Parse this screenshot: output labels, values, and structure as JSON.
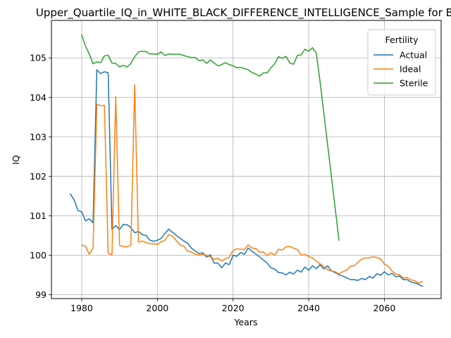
{
  "chart_data": {
    "type": "line",
    "title": "Upper_Quartile_IQ_in_WHITE_BLACK_DIFFERENCE_INTELLIGENCE_Sample for Bl",
    "xlabel": "Years",
    "ylabel": "IQ",
    "xlim": [
      1972,
      2075
    ],
    "ylim": [
      98.9,
      105.95
    ],
    "x_ticks": [
      1980,
      2000,
      2020,
      2040,
      2060
    ],
    "y_ticks": [
      99,
      100,
      101,
      102,
      103,
      104,
      105
    ],
    "grid": true,
    "legend": {
      "title": "Fertility",
      "placement": "top-right"
    },
    "series": [
      {
        "name": "Actual",
        "color": "#1f77b4",
        "points": [
          [
            1977,
            101.55
          ],
          [
            1978,
            101.4
          ],
          [
            1979,
            101.13
          ],
          [
            1980,
            101.1
          ],
          [
            1981,
            100.87
          ],
          [
            1982,
            100.92
          ],
          [
            1983,
            100.82
          ],
          [
            1984,
            104.7
          ],
          [
            1985,
            104.6
          ],
          [
            1986,
            104.65
          ],
          [
            1987,
            104.62
          ],
          [
            1988,
            100.65
          ],
          [
            1989,
            100.75
          ],
          [
            1990,
            100.65
          ],
          [
            1991,
            100.78
          ],
          [
            1992,
            100.77
          ],
          [
            1993,
            100.7
          ],
          [
            1994,
            100.57
          ],
          [
            1995,
            100.6
          ],
          [
            1996,
            100.52
          ],
          [
            1997,
            100.5
          ],
          [
            1998,
            100.38
          ],
          [
            1999,
            100.35
          ],
          [
            2000,
            100.38
          ],
          [
            2001,
            100.42
          ],
          [
            2002,
            100.55
          ],
          [
            2003,
            100.66
          ],
          [
            2004,
            100.58
          ],
          [
            2005,
            100.5
          ],
          [
            2006,
            100.43
          ],
          [
            2007,
            100.36
          ],
          [
            2008,
            100.3
          ],
          [
            2009,
            100.18
          ],
          [
            2010,
            100.1
          ],
          [
            2011,
            100.04
          ],
          [
            2012,
            100.06
          ],
          [
            2013,
            99.95
          ],
          [
            2014,
            100.01
          ],
          [
            2015,
            99.8
          ],
          [
            2016,
            99.8
          ],
          [
            2017,
            99.68
          ],
          [
            2018,
            99.8
          ],
          [
            2019,
            99.76
          ],
          [
            2020,
            100.0
          ],
          [
            2021,
            99.97
          ],
          [
            2022,
            100.07
          ],
          [
            2023,
            100.02
          ],
          [
            2024,
            100.18
          ],
          [
            2025,
            100.1
          ],
          [
            2026,
            100.03
          ],
          [
            2027,
            99.96
          ],
          [
            2028,
            99.88
          ],
          [
            2029,
            99.8
          ],
          [
            2030,
            99.68
          ],
          [
            2031,
            99.65
          ],
          [
            2032,
            99.56
          ],
          [
            2033,
            99.55
          ],
          [
            2034,
            99.5
          ],
          [
            2035,
            99.57
          ],
          [
            2036,
            99.52
          ],
          [
            2037,
            99.62
          ],
          [
            2038,
            99.57
          ],
          [
            2039,
            99.7
          ],
          [
            2040,
            99.62
          ],
          [
            2041,
            99.73
          ],
          [
            2042,
            99.66
          ],
          [
            2043,
            99.76
          ],
          [
            2044,
            99.65
          ],
          [
            2045,
            99.73
          ],
          [
            2046,
            99.6
          ],
          [
            2047,
            99.56
          ],
          [
            2048,
            99.5
          ],
          [
            2049,
            99.47
          ],
          [
            2050,
            99.43
          ],
          [
            2051,
            99.38
          ],
          [
            2052,
            99.38
          ],
          [
            2053,
            99.36
          ],
          [
            2054,
            99.41
          ],
          [
            2055,
            99.38
          ],
          [
            2056,
            99.46
          ],
          [
            2057,
            99.42
          ],
          [
            2058,
            99.53
          ],
          [
            2059,
            99.49
          ],
          [
            2060,
            99.58
          ],
          [
            2061,
            99.5
          ],
          [
            2062,
            99.54
          ],
          [
            2063,
            99.45
          ],
          [
            2064,
            99.47
          ],
          [
            2065,
            99.38
          ],
          [
            2066,
            99.38
          ],
          [
            2067,
            99.32
          ],
          [
            2068,
            99.3
          ],
          [
            2069,
            99.26
          ],
          [
            2070,
            99.21
          ]
        ]
      },
      {
        "name": "Ideal",
        "color": "#ff7f0e",
        "points": [
          [
            1980,
            100.25
          ],
          [
            1981,
            100.23
          ],
          [
            1982,
            100.02
          ],
          [
            1983,
            100.18
          ],
          [
            1984,
            103.82
          ],
          [
            1985,
            103.79
          ],
          [
            1986,
            103.8
          ],
          [
            1987,
            100.05
          ],
          [
            1988,
            100.0
          ],
          [
            1989,
            104.02
          ],
          [
            1990,
            100.25
          ],
          [
            1991,
            100.22
          ],
          [
            1992,
            100.21
          ],
          [
            1993,
            100.25
          ],
          [
            1994,
            104.32
          ],
          [
            1995,
            100.33
          ],
          [
            1996,
            100.36
          ],
          [
            1997,
            100.32
          ],
          [
            1998,
            100.29
          ],
          [
            1999,
            100.29
          ],
          [
            2000,
            100.27
          ],
          [
            2001,
            100.34
          ],
          [
            2002,
            100.38
          ],
          [
            2003,
            100.52
          ],
          [
            2004,
            100.48
          ],
          [
            2005,
            100.37
          ],
          [
            2006,
            100.26
          ],
          [
            2007,
            100.23
          ],
          [
            2008,
            100.1
          ],
          [
            2009,
            100.08
          ],
          [
            2010,
            100.02
          ],
          [
            2011,
            100.0
          ],
          [
            2012,
            100.02
          ],
          [
            2013,
            100.0
          ],
          [
            2014,
            99.95
          ],
          [
            2015,
            99.9
          ],
          [
            2016,
            99.92
          ],
          [
            2017,
            99.85
          ],
          [
            2018,
            99.91
          ],
          [
            2019,
            99.95
          ],
          [
            2020,
            100.12
          ],
          [
            2021,
            100.16
          ],
          [
            2022,
            100.15
          ],
          [
            2023,
            100.14
          ],
          [
            2024,
            100.26
          ],
          [
            2025,
            100.18
          ],
          [
            2026,
            100.17
          ],
          [
            2027,
            100.08
          ],
          [
            2028,
            100.08
          ],
          [
            2029,
            99.99
          ],
          [
            2030,
            100.06
          ],
          [
            2031,
            100.0
          ],
          [
            2032,
            100.15
          ],
          [
            2033,
            100.13
          ],
          [
            2034,
            100.21
          ],
          [
            2035,
            100.22
          ],
          [
            2036,
            100.18
          ],
          [
            2037,
            100.14
          ],
          [
            2038,
            100.0
          ],
          [
            2039,
            100.02
          ],
          [
            2040,
            99.97
          ],
          [
            2041,
            99.93
          ],
          [
            2042,
            99.85
          ],
          [
            2043,
            99.78
          ],
          [
            2044,
            99.71
          ],
          [
            2045,
            99.63
          ],
          [
            2046,
            99.6
          ],
          [
            2047,
            99.58
          ],
          [
            2048,
            99.52
          ],
          [
            2049,
            99.58
          ],
          [
            2050,
            99.62
          ],
          [
            2051,
            99.72
          ],
          [
            2052,
            99.73
          ],
          [
            2053,
            99.82
          ],
          [
            2054,
            99.9
          ],
          [
            2055,
            99.93
          ],
          [
            2056,
            99.93
          ],
          [
            2057,
            99.96
          ],
          [
            2058,
            99.94
          ],
          [
            2059,
            99.9
          ],
          [
            2060,
            99.78
          ],
          [
            2061,
            99.72
          ],
          [
            2062,
            99.6
          ],
          [
            2063,
            99.52
          ],
          [
            2064,
            99.5
          ],
          [
            2065,
            99.42
          ],
          [
            2066,
            99.43
          ],
          [
            2067,
            99.37
          ],
          [
            2068,
            99.36
          ],
          [
            2069,
            99.29
          ],
          [
            2070,
            99.33
          ]
        ]
      },
      {
        "name": "Sterile",
        "color": "#2ca02c",
        "points": [
          [
            1980,
            105.58
          ],
          [
            1981,
            105.3
          ],
          [
            1982,
            105.1
          ],
          [
            1983,
            104.85
          ],
          [
            1984,
            104.9
          ],
          [
            1985,
            104.88
          ],
          [
            1986,
            105.05
          ],
          [
            1987,
            105.07
          ],
          [
            1988,
            104.87
          ],
          [
            1989,
            104.86
          ],
          [
            1990,
            104.77
          ],
          [
            1991,
            104.81
          ],
          [
            1992,
            104.77
          ],
          [
            1993,
            104.86
          ],
          [
            1994,
            105.03
          ],
          [
            1995,
            105.15
          ],
          [
            1996,
            105.17
          ],
          [
            1997,
            105.16
          ],
          [
            1998,
            105.1
          ],
          [
            1999,
            105.1
          ],
          [
            2000,
            105.09
          ],
          [
            2001,
            105.15
          ],
          [
            2002,
            105.06
          ],
          [
            2003,
            105.1
          ],
          [
            2004,
            105.09
          ],
          [
            2005,
            105.09
          ],
          [
            2006,
            105.09
          ],
          [
            2007,
            105.06
          ],
          [
            2008,
            105.03
          ],
          [
            2009,
            105.01
          ],
          [
            2010,
            105.01
          ],
          [
            2011,
            104.93
          ],
          [
            2012,
            104.95
          ],
          [
            2013,
            104.86
          ],
          [
            2014,
            104.95
          ],
          [
            2015,
            104.87
          ],
          [
            2016,
            104.8
          ],
          [
            2017,
            104.83
          ],
          [
            2018,
            104.88
          ],
          [
            2019,
            104.83
          ],
          [
            2020,
            104.8
          ],
          [
            2021,
            104.75
          ],
          [
            2022,
            104.76
          ],
          [
            2023,
            104.73
          ],
          [
            2024,
            104.7
          ],
          [
            2025,
            104.63
          ],
          [
            2026,
            104.59
          ],
          [
            2027,
            104.54
          ],
          [
            2028,
            104.62
          ],
          [
            2029,
            104.62
          ],
          [
            2030,
            104.75
          ],
          [
            2031,
            104.85
          ],
          [
            2032,
            105.03
          ],
          [
            2033,
            104.99
          ],
          [
            2034,
            105.04
          ],
          [
            2035,
            104.87
          ],
          [
            2036,
            104.84
          ],
          [
            2037,
            105.06
          ],
          [
            2038,
            105.08
          ],
          [
            2039,
            105.22
          ],
          [
            2040,
            105.17
          ],
          [
            2041,
            105.26
          ],
          [
            2042,
            105.12
          ],
          [
            2043,
            104.4
          ],
          [
            2048,
            100.38
          ]
        ]
      }
    ]
  }
}
